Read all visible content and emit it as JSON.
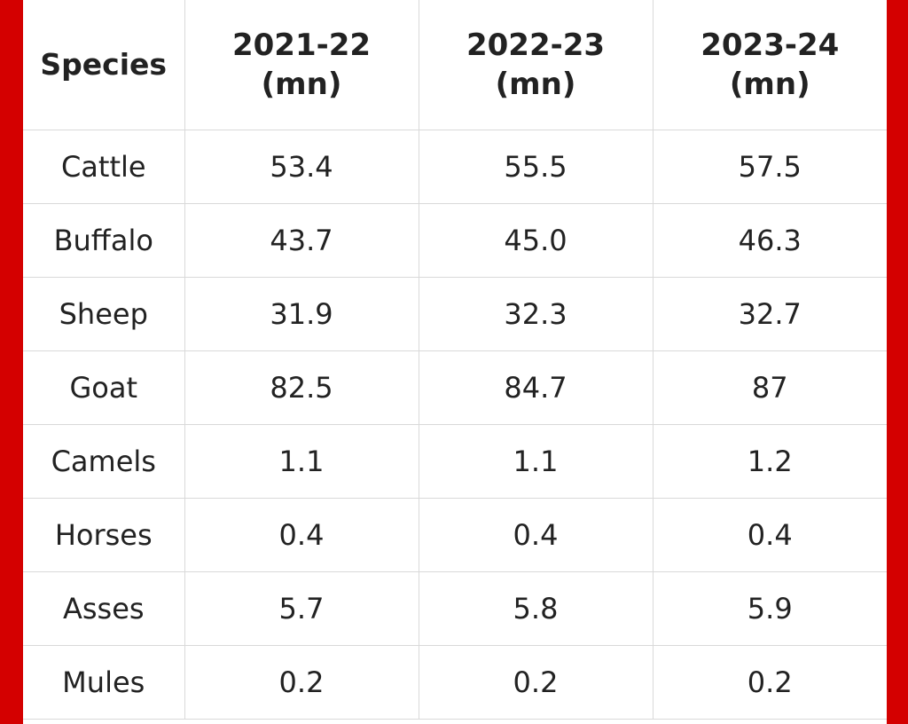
{
  "table": {
    "headers": {
      "species": "Species",
      "cols": [
        {
          "year": "2021-22",
          "unit": "(mn)"
        },
        {
          "year": "2022-23",
          "unit": "(mn)"
        },
        {
          "year": "2023-24",
          "unit": "(mn)"
        }
      ]
    },
    "rows": [
      {
        "species": "Cattle",
        "values": [
          "53.4",
          "55.5",
          "57.5"
        ]
      },
      {
        "species": "Buffalo",
        "values": [
          "43.7",
          "45.0",
          "46.3"
        ]
      },
      {
        "species": "Sheep",
        "values": [
          "31.9",
          "32.3",
          "32.7"
        ]
      },
      {
        "species": "Goat",
        "values": [
          "82.5",
          "84.7",
          "87"
        ]
      },
      {
        "species": "Camels",
        "values": [
          "1.1",
          "1.1",
          "1.2"
        ]
      },
      {
        "species": "Horses",
        "values": [
          "0.4",
          "0.4",
          "0.4"
        ]
      },
      {
        "species": "Asses",
        "values": [
          "5.7",
          "5.8",
          "5.9"
        ]
      },
      {
        "species": "Mules",
        "values": [
          "0.2",
          "0.2",
          "0.2"
        ]
      }
    ]
  },
  "colors": {
    "frame": "#d40000",
    "background": "#ffffff",
    "grid": "#d9d9d9",
    "text": "#222222"
  }
}
